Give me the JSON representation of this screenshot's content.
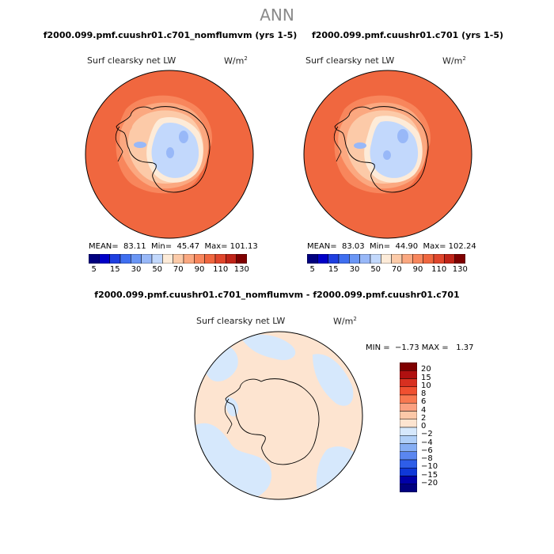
{
  "suptitle": "ANN",
  "panel1": {
    "title": "f2000.099.pmf.cuushr01.c701_nomflumvm (yrs 1-5)",
    "varname": "Surf clearsky net LW",
    "units": "W/m",
    "units_exp": "2",
    "stats": "MEAN=  83.11  Min=  45.47  Max= 101.13"
  },
  "panel2": {
    "title": "f2000.099.pmf.cuushr01.c701 (yrs 1-5)",
    "varname": "Surf clearsky net LW",
    "units": "W/m",
    "units_exp": "2",
    "stats": "MEAN=  83.03  Min=  44.90  Max= 102.24"
  },
  "panel3": {
    "title": "f2000.099.pmf.cuushr01.c701_nomflumvm - f2000.099.pmf.cuushr01.c701",
    "varname": "Surf clearsky net LW",
    "units": "W/m",
    "units_exp": "2",
    "stats": "MIN =  −1.73 MAX =   1.37"
  },
  "chart_data": [
    {
      "type": "heatmap",
      "projection": "south polar stereographic",
      "title": "f2000.099.pmf.cuushr01.c701_nomflumvm (yrs 1-5)",
      "variable": "Surf clearsky net LW",
      "units": "W/m2",
      "mean": 83.11,
      "min": 45.47,
      "max": 101.13,
      "colorbar_ticks": [
        "5",
        "15",
        "30",
        "50",
        "70",
        "90",
        "110",
        "130"
      ],
      "colorbar_levels": [
        5,
        10,
        15,
        20,
        30,
        40,
        50,
        60,
        70,
        80,
        90,
        100,
        110,
        120,
        130
      ],
      "colorbar_colors": [
        "#00007f",
        "#0000c8",
        "#1f3fe0",
        "#3f6ff0",
        "#6a96f5",
        "#98b8f8",
        "#c2d8fc",
        "#fdebd8",
        "#fccaa8",
        "#fba880",
        "#f8865c",
        "#f0673f",
        "#e0462c",
        "#c02418",
        "#7f0000"
      ]
    },
    {
      "type": "heatmap",
      "projection": "south polar stereographic",
      "title": "f2000.099.pmf.cuushr01.c701 (yrs 1-5)",
      "variable": "Surf clearsky net LW",
      "units": "W/m2",
      "mean": 83.03,
      "min": 44.9,
      "max": 102.24,
      "colorbar_ticks": [
        "5",
        "15",
        "30",
        "50",
        "70",
        "90",
        "110",
        "130"
      ],
      "colorbar_levels": [
        5,
        10,
        15,
        20,
        30,
        40,
        50,
        60,
        70,
        80,
        90,
        100,
        110,
        120,
        130
      ],
      "colorbar_colors": [
        "#00007f",
        "#0000c8",
        "#1f3fe0",
        "#3f6ff0",
        "#6a96f5",
        "#98b8f8",
        "#c2d8fc",
        "#fdebd8",
        "#fccaa8",
        "#fba880",
        "#f8865c",
        "#f0673f",
        "#e0462c",
        "#c02418",
        "#7f0000"
      ]
    },
    {
      "type": "heatmap",
      "projection": "south polar stereographic",
      "title": "f2000.099.pmf.cuushr01.c701_nomflumvm - f2000.099.pmf.cuushr01.c701",
      "variable": "Surf clearsky net LW",
      "units": "W/m2",
      "min": -1.73,
      "max": 1.37,
      "colorbar_ticks": [
        "20",
        "15",
        "10",
        "8",
        "6",
        "4",
        "2",
        "0",
        "−2",
        "−4",
        "−6",
        "−8",
        "−10",
        "−15",
        "−20"
      ],
      "colorbar_colors": [
        "#7f0000",
        "#b01010",
        "#d83020",
        "#f05030",
        "#f87850",
        "#fba080",
        "#fcc8a8",
        "#fde4d0",
        "#d6e8fc",
        "#b0cff8",
        "#86aef4",
        "#5a86f0",
        "#2e5ee8",
        "#0f38d8",
        "#0000a8",
        "#00007f"
      ]
    }
  ]
}
